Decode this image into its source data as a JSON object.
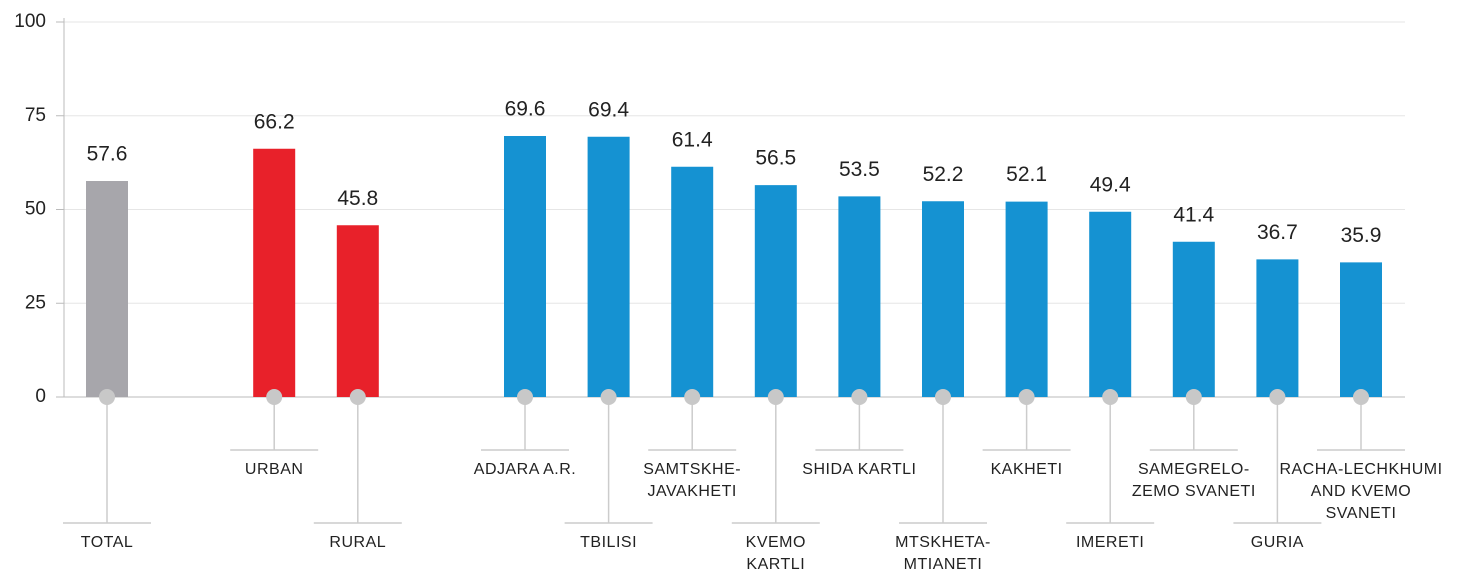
{
  "chart_data": {
    "type": "bar",
    "categories": [
      "TOTAL",
      "URBAN",
      "RURAL",
      "ADJARA A.R.",
      "TBILISI",
      "SAMTSKHE-\nJAVAKHETI",
      "KVEMO\nKARTLI",
      "SHIDA KARTLI",
      "MTSKHETA-\nMTIANETI",
      "KAKHETI",
      "IMERETI",
      "SAMEGRELO-\nZEMO SVANETI",
      "GURIA",
      "RACHA-LECHKHUMI\nAND KVEMO\nSVANETI"
    ],
    "values": [
      57.6,
      66.2,
      45.8,
      69.6,
      69.4,
      61.4,
      56.5,
      53.5,
      52.2,
      52.1,
      49.4,
      41.4,
      36.7,
      35.9
    ],
    "colors": [
      "#a7a6ab",
      "#e8212a",
      "#e8212a",
      "#1592d2",
      "#1592d2",
      "#1592d2",
      "#1592d2",
      "#1592d2",
      "#1592d2",
      "#1592d2",
      "#1592d2",
      "#1592d2",
      "#1592d2",
      "#1592d2"
    ],
    "ylim": [
      0,
      100
    ],
    "yticks": [
      0,
      25,
      50,
      75,
      100
    ],
    "grid": true
  }
}
